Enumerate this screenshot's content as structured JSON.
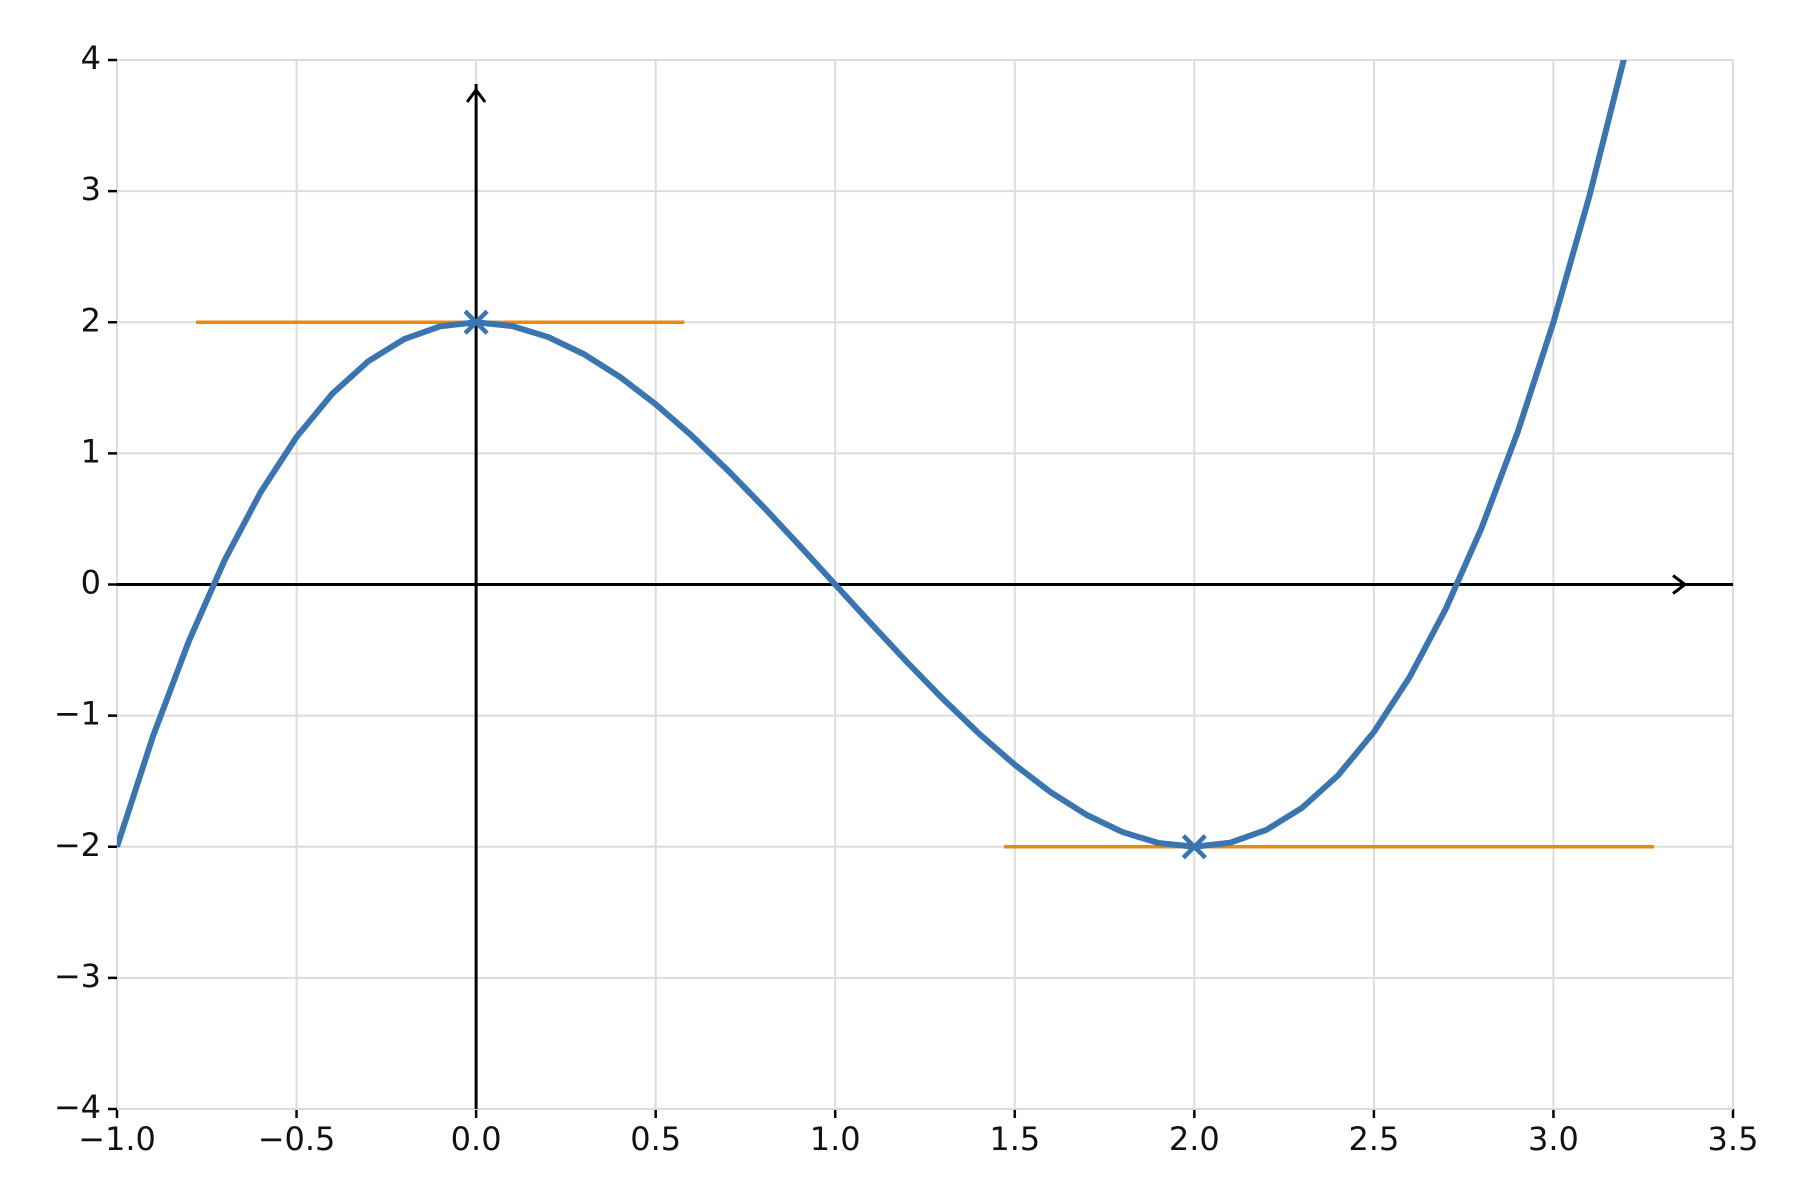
{
  "chart_data": {
    "type": "line",
    "xlim": [
      -1.0,
      3.5
    ],
    "ylim": [
      -4,
      4
    ],
    "xticks": [
      {
        "value": -1.0,
        "label": "−1.0"
      },
      {
        "value": -0.5,
        "label": "−0.5"
      },
      {
        "value": 0.0,
        "label": "0.0"
      },
      0.5,
      {
        "value": 1.0,
        "label": "1.0"
      },
      1.5,
      {
        "value": 2.0,
        "label": "2.0"
      },
      2.5,
      {
        "value": 3.0,
        "label": "3.0"
      },
      3.5
    ],
    "yticks": [
      {
        "value": -4,
        "label": "−4"
      },
      {
        "value": -3,
        "label": "−3"
      },
      {
        "value": -2,
        "label": "−2"
      },
      {
        "value": -1,
        "label": "−1"
      },
      0,
      1,
      2,
      3,
      4
    ],
    "grid": true,
    "axis_arrows": true,
    "series": [
      {
        "style": "line",
        "color": "#3b75af",
        "linewidth": 6,
        "x": [
          -1.0,
          -0.9,
          -0.8,
          -0.7,
          -0.6,
          -0.5,
          -0.4,
          -0.3,
          -0.2,
          -0.1,
          0.0,
          0.1,
          0.2,
          0.3,
          0.4,
          0.5,
          0.6,
          0.7,
          0.8,
          0.9,
          1.0,
          1.1,
          1.2,
          1.3,
          1.4,
          1.5,
          1.6,
          1.7,
          1.8,
          1.9,
          2.0,
          2.1,
          2.2,
          2.3,
          2.4,
          2.5,
          2.6,
          2.7,
          2.8,
          2.9,
          3.0,
          3.1,
          3.2
        ],
        "values": [
          -2,
          -1.159,
          -0.432,
          0.187,
          0.704,
          1.125,
          1.456,
          1.703,
          1.872,
          1.969,
          2,
          1.971,
          1.888,
          1.757,
          1.584,
          1.375,
          1.136,
          0.873,
          0.592,
          0.299,
          0,
          -0.299,
          -0.592,
          -0.873,
          -1.136,
          -1.375,
          -1.584,
          -1.757,
          -1.888,
          -1.971,
          -2,
          -1.969,
          -1.872,
          -1.703,
          -1.456,
          -1.125,
          -0.704,
          -0.187,
          0.432,
          1.159,
          2,
          2.961,
          4.048
        ]
      },
      {
        "style": "marker",
        "color": "#3b75af",
        "x": [
          0,
          2
        ],
        "values": [
          2,
          -2
        ]
      },
      {
        "style": "line",
        "color": "#e8891a",
        "linewidth": 3.5,
        "x": [
          -0.78,
          0.58
        ],
        "values": [
          2,
          2
        ]
      },
      {
        "style": "line",
        "color": "#e8891a",
        "linewidth": 3.5,
        "x": [
          1.47,
          3.28
        ],
        "values": [
          -2,
          -2
        ]
      }
    ]
  }
}
